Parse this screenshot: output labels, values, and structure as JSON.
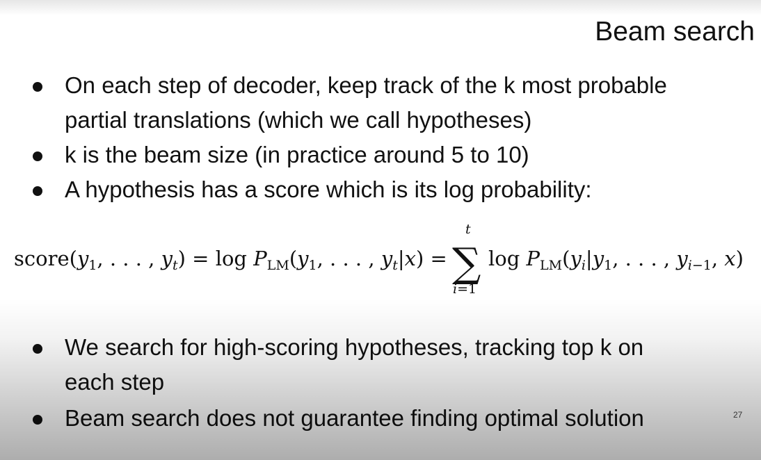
{
  "slide": {
    "title": "Beam search",
    "bullets": [
      {
        "lines": [
          "On each step of decoder, keep track of the k most probable",
          "partial translations (which we call hypotheses)"
        ]
      },
      {
        "lines": [
          "k is the beam size (in practice around 5 to 10)"
        ]
      },
      {
        "lines": [
          "A hypothesis has a score which is its log probability:"
        ]
      },
      {
        "lines": [
          "We search for high-scoring hypotheses, tracking top k on",
          "each step"
        ]
      },
      {
        "lines": [
          "Beam search does not guarantee finding optimal solution"
        ]
      }
    ],
    "formula": {
      "lhs": "score(y₁, . . . , yₜ) = log Pₗₘ(y₁, . . . , yₜ|x) =",
      "lhs_main": "score(y",
      "sum_top": "t",
      "sum_bottom": "i=1",
      "sum_symbol": "∑",
      "rhs": "log P",
      "rhs_tail": "(y",
      "full_left": "score(",
      "full_text": "score(y1, . . . , yt) = log PLM(y1, . . . , yt|x) = ∑ log PLM(yi|y1, . . . , yi−1, x)"
    },
    "page_number": "27"
  }
}
